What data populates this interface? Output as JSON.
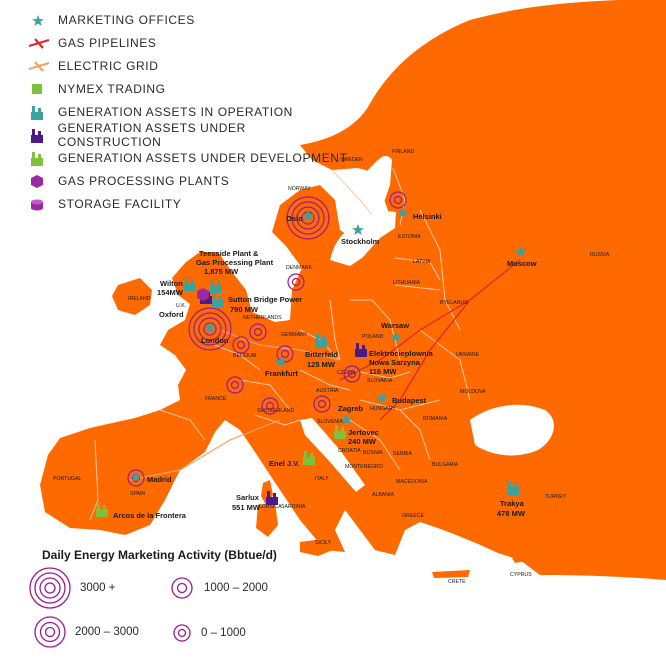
{
  "legend": {
    "items": [
      {
        "label": "MARKETING OFFICES",
        "icon": "star-icon",
        "color": "#3aa3a0"
      },
      {
        "label": "GAS PIPELINES",
        "icon": "red-line-icon",
        "color": "#e0262b"
      },
      {
        "label": "ELECTRIC GRID",
        "icon": "orange-line-icon",
        "color": "#f5a165"
      },
      {
        "label": "NYMEX TRADING",
        "icon": "nymex-square-icon",
        "color": "#7dc23a"
      },
      {
        "label": "GENERATION ASSETS IN OPERATION",
        "icon": "factory-icon",
        "color": "#3aa3a0"
      },
      {
        "label": "GENERATION ASSETS UNDER CONSTRUCTION",
        "icon": "factory-icon",
        "color": "#4b1a8a"
      },
      {
        "label": "GENERATION ASSETS UNDER DEVELOPMENT",
        "icon": "factory-icon",
        "color": "#7dc23a"
      },
      {
        "label": "GAS PROCESSING PLANTS",
        "icon": "hexagon-icon",
        "color": "#9b2aa0"
      },
      {
        "label": "STORAGE FACILITY",
        "icon": "cylinder-icon",
        "color": "#9b2aa0"
      }
    ]
  },
  "activity": {
    "title": "Daily Energy Marketing Activity (Bbtue/d)",
    "levels": [
      {
        "label": "3000 +",
        "rings": 4
      },
      {
        "label": "2000 – 3000",
        "rings": 3
      },
      {
        "label": "1000 – 2000",
        "rings": 2
      },
      {
        "label": "0 – 1000",
        "rings": 1
      }
    ]
  },
  "colors": {
    "land": "#ff6a00",
    "border": "#f7c9a6",
    "sea": "#ffffff",
    "ring": "#9b1a8f",
    "star": "#3aa3a0",
    "operation": "#3aa3a0",
    "construction": "#4b1a8a",
    "development": "#7dc23a"
  },
  "countries": [
    "SWEDEN",
    "FINLAND",
    "NORWAY",
    "ESTONIA",
    "LATVIA",
    "RUSSIA",
    "DENMARK",
    "LITHUANIA",
    "BYELARUS",
    "IRELAND",
    "U.K.",
    "NETHERLANDS",
    "GERMANY",
    "POLAND",
    "UKRAINE",
    "BELGIUM",
    "CZECH",
    "SLOVAKIA",
    "MOLDOVA",
    "FRANCE",
    "AUSTRIA",
    "HUNGARY",
    "ROMANIA",
    "SWITZERLAND",
    "SLOVENIA",
    "CROATIA",
    "BOSNIA",
    "SERBIA",
    "BULGARIA",
    "MONTENEGRO",
    "MACEDONIA",
    "ALBANIA",
    "GREECE",
    "PORTUGAL",
    "SPAIN",
    "ITALY",
    "CORSICA",
    "SARDINIA",
    "SICILY",
    "TURKEY",
    "CRETE",
    "CYPRUS"
  ],
  "offices": [
    "Oslo",
    "Stockholm",
    "Helsinki",
    "Moscow",
    "London",
    "Frankfurt",
    "Warsaw",
    "Budapest",
    "Zagreb",
    "Madrid"
  ],
  "assets": [
    "Teesside Plant & Gas Processing Plant\n1,875 MW",
    "Wilton\n154MW",
    "Sutton Bridge Power\n790 MW",
    "Oxford",
    "Bitterfeld\n125 MW",
    "Elektrocieplownia\nNowa Sarzyna\n116 MW",
    "Jertovec\n240 MW",
    "Enel J.V.",
    "Sarlux\n551 MW",
    "Arcos de la Frontera",
    "Trakya\n478 MW"
  ]
}
